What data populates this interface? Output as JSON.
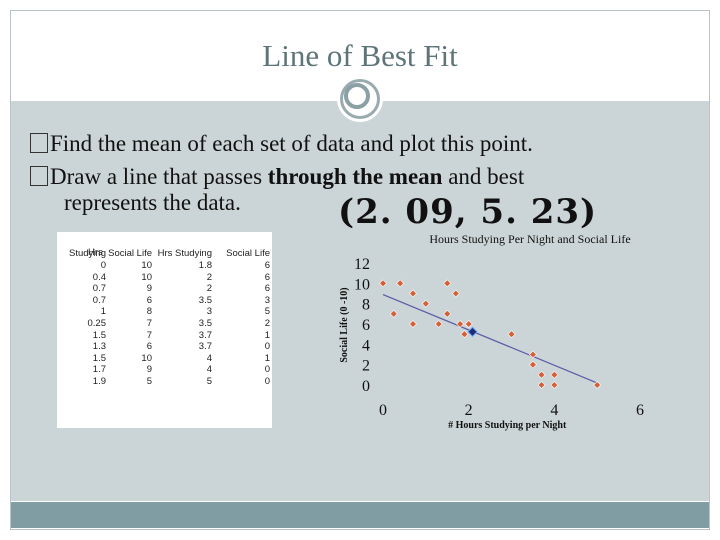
{
  "slide": {
    "title": "Line of Best Fit",
    "bullets": [
      "Find the mean of each set of data and plot this point.",
      "Draw a line that passes through the mean and best"
    ],
    "bullet2_bold": "through the mean",
    "bullet2_cont": "represents the data.",
    "mean_point": "(2. 09, 5. 23)"
  },
  "table": {
    "header_top": "Hrs",
    "headers": [
      "Studying",
      "Social Life",
      "Hrs Studying",
      "Social Life"
    ],
    "rows": [
      [
        "0",
        "10",
        "1.8",
        "6"
      ],
      [
        "0.4",
        "10",
        "2",
        "6"
      ],
      [
        "0.7",
        "9",
        "2",
        "6"
      ],
      [
        "0.7",
        "6",
        "3.5",
        "3"
      ],
      [
        "1",
        "8",
        "3",
        "5"
      ],
      [
        "0.25",
        "7",
        "3.5",
        "2"
      ],
      [
        "1.5",
        "7",
        "3.7",
        "1"
      ],
      [
        "1.3",
        "6",
        "3.7",
        "0"
      ],
      [
        "1.5",
        "10",
        "4",
        "1"
      ],
      [
        "1.7",
        "9",
        "4",
        "0"
      ],
      [
        "1.9",
        "5",
        "5",
        "0"
      ]
    ]
  },
  "chart_data": {
    "type": "scatter",
    "title": "Hours Studying Per Night and Social Life",
    "xlabel": "# Hours Studying per Night",
    "ylabel": "Social Life (0 -10)",
    "xlim": [
      0,
      6
    ],
    "ylim": [
      0,
      12
    ],
    "x_ticks": [
      "0",
      "2",
      "4",
      "6"
    ],
    "y_ticks": [
      "12",
      "10",
      "8",
      "6",
      "4",
      "2",
      "0"
    ],
    "points": [
      {
        "x": 0,
        "y": 10
      },
      {
        "x": 0.4,
        "y": 10
      },
      {
        "x": 0.7,
        "y": 9
      },
      {
        "x": 0.7,
        "y": 6
      },
      {
        "x": 1,
        "y": 8
      },
      {
        "x": 0.25,
        "y": 7
      },
      {
        "x": 1.5,
        "y": 7
      },
      {
        "x": 1.3,
        "y": 6
      },
      {
        "x": 1.5,
        "y": 10
      },
      {
        "x": 1.7,
        "y": 9
      },
      {
        "x": 1.9,
        "y": 5
      },
      {
        "x": 1.8,
        "y": 6
      },
      {
        "x": 2,
        "y": 6
      },
      {
        "x": 2,
        "y": 6
      },
      {
        "x": 3.5,
        "y": 3
      },
      {
        "x": 3,
        "y": 5
      },
      {
        "x": 3.5,
        "y": 2
      },
      {
        "x": 3.7,
        "y": 1
      },
      {
        "x": 3.7,
        "y": 0
      },
      {
        "x": 4,
        "y": 1
      },
      {
        "x": 4,
        "y": 0
      },
      {
        "x": 5,
        "y": 0
      }
    ],
    "mean_point": {
      "x": 2.09,
      "y": 5.23
    },
    "best_fit_line": [
      {
        "x": 0,
        "y": 8.9
      },
      {
        "x": 5,
        "y": 0.2
      }
    ],
    "colors": {
      "points": "#d4603a",
      "mean": "#1a2d6e",
      "line": "#5a5aa8"
    }
  }
}
